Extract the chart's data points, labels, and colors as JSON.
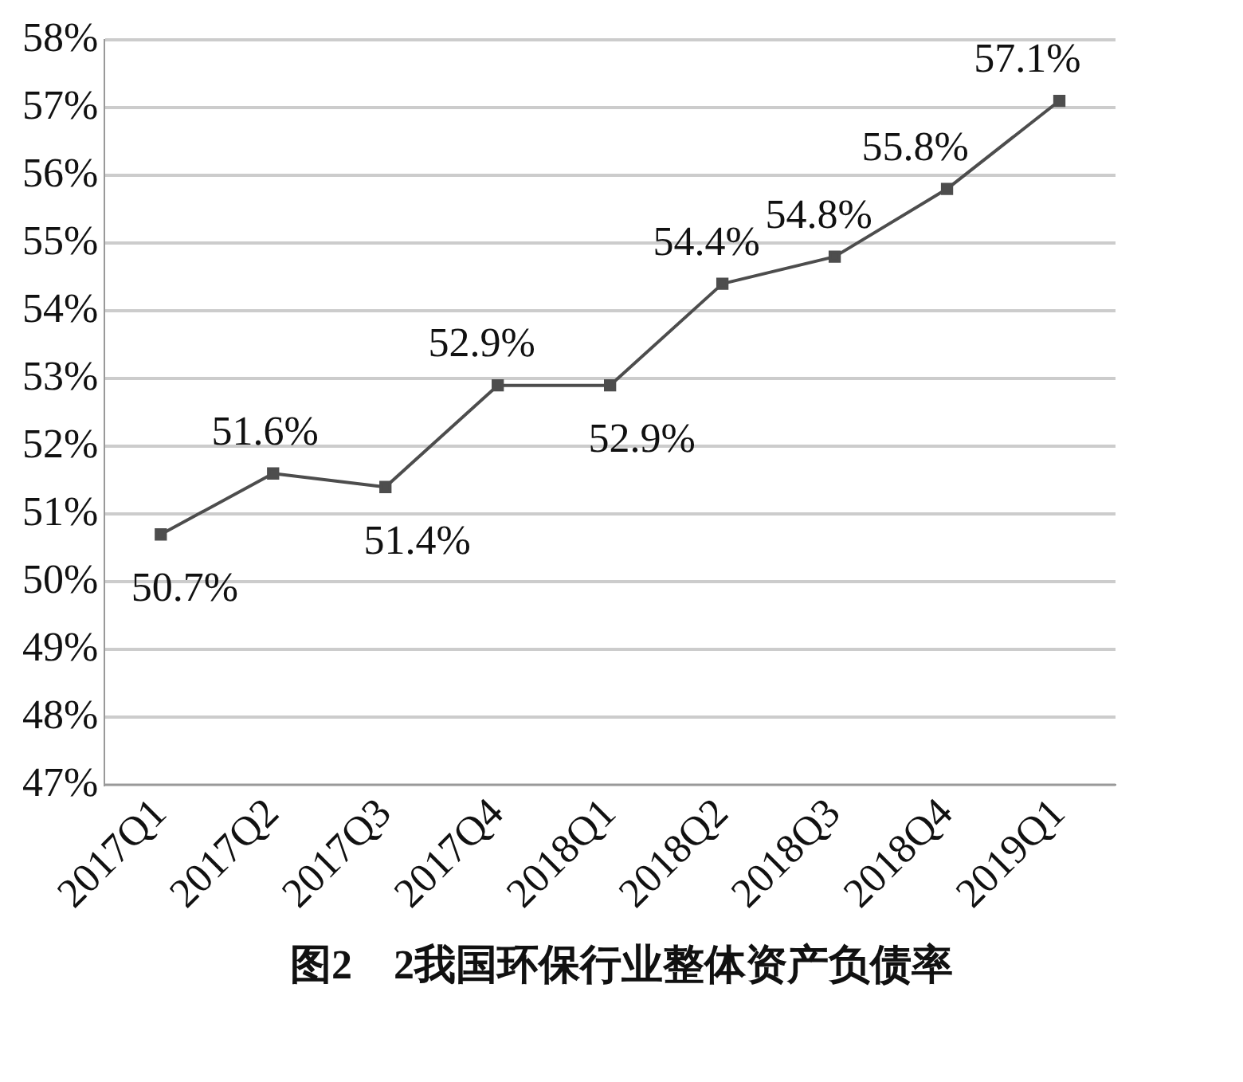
{
  "chart_data": {
    "type": "line",
    "title": "图2　2我国环保行业整体资产负债率",
    "categories": [
      "2017Q1",
      "2017Q2",
      "2017Q3",
      "2017Q4",
      "2018Q1",
      "2018Q2",
      "2018Q3",
      "2018Q4",
      "2019Q1"
    ],
    "series": [
      {
        "color": "#4d4d4d",
        "values": [
          50.7,
          51.6,
          51.4,
          52.9,
          52.9,
          54.4,
          54.8,
          55.8,
          57.1
        ]
      }
    ],
    "ylim": [
      47,
      58
    ],
    "yticks": [
      {
        "value": 47,
        "label": "47%"
      },
      {
        "value": 48,
        "label": "48%"
      },
      {
        "value": 49,
        "label": "49%"
      },
      {
        "value": 50,
        "label": "50%"
      },
      {
        "value": 51,
        "label": "51%"
      },
      {
        "value": 52,
        "label": "52%"
      },
      {
        "value": 53,
        "label": "53%"
      },
      {
        "value": 54,
        "label": "54%"
      },
      {
        "value": 55,
        "label": "55%"
      },
      {
        "value": 56,
        "label": "56%"
      },
      {
        "value": 57,
        "label": "57%"
      },
      {
        "value": 58,
        "label": "58%"
      }
    ],
    "value_labels": [
      "50.7%",
      "51.6%",
      "51.4%",
      "52.9%",
      "52.9%",
      "54.4%",
      "54.8%",
      "55.8%",
      "57.1%"
    ],
    "grid": "y",
    "marker": "square",
    "legend": false
  }
}
